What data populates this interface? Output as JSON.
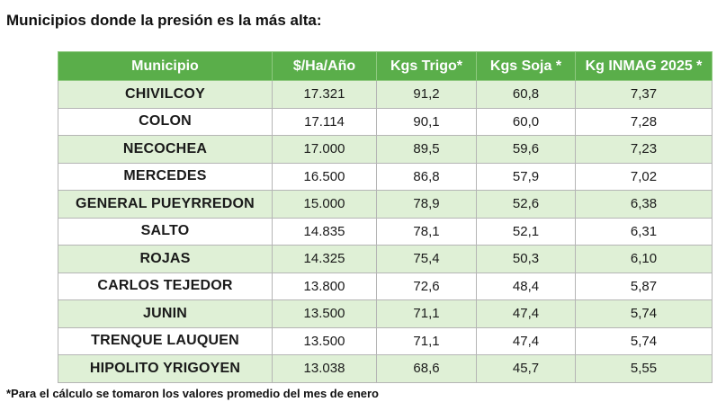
{
  "title": "Municipios donde la presión es la más alta:",
  "table": {
    "headers": [
      "Municipio",
      "$/Ha/Año",
      "Kgs Trigo*",
      "Kgs Soja *",
      "Kg INMAG 2025 *"
    ],
    "rows": [
      [
        "CHIVILCOY",
        "17.321",
        "91,2",
        "60,8",
        "7,37"
      ],
      [
        "COLON",
        "17.114",
        "90,1",
        "60,0",
        "7,28"
      ],
      [
        "NECOCHEA",
        "17.000",
        "89,5",
        "59,6",
        "7,23"
      ],
      [
        "MERCEDES",
        "16.500",
        "86,8",
        "57,9",
        "7,02"
      ],
      [
        "GENERAL PUEYRREDON",
        "15.000",
        "78,9",
        "52,6",
        "6,38"
      ],
      [
        "SALTO",
        "14.835",
        "78,1",
        "52,1",
        "6,31"
      ],
      [
        "ROJAS",
        "14.325",
        "75,4",
        "50,3",
        "6,10"
      ],
      [
        "CARLOS TEJEDOR",
        "13.800",
        "72,6",
        "48,4",
        "5,87"
      ],
      [
        "JUNIN",
        "13.500",
        "71,1",
        "47,4",
        "5,74"
      ],
      [
        "TRENQUE LAUQUEN",
        "13.500",
        "71,1",
        "47,4",
        "5,74"
      ],
      [
        "HIPOLITO YRIGOYEN",
        "13.038",
        "68,6",
        "45,7",
        "5,55"
      ]
    ]
  },
  "footnote": "*Para el cálculo se tomaron los valores promedio del mes de enero",
  "colors": {
    "header_bg": "#5aae4a",
    "row_alt_bg": "#dff0d6",
    "row_bg": "#ffffff"
  }
}
